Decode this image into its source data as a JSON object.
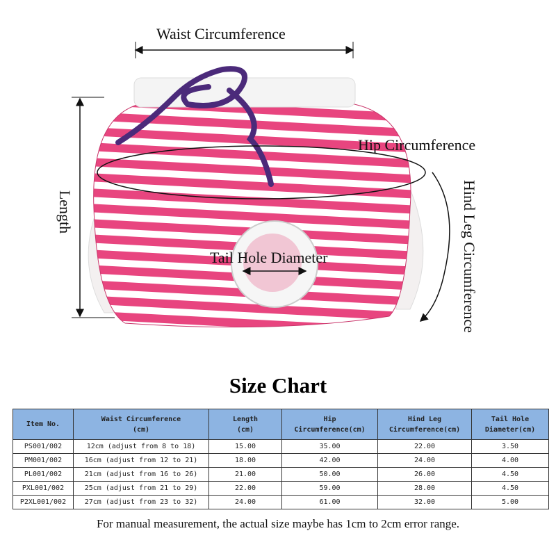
{
  "diagram_labels": {
    "waist": "Waist Circumference",
    "hip": "Hip Circumference",
    "length": "Length",
    "tail_hole": "Tail Hole Diameter",
    "hind_leg": "Hind Leg Circumference"
  },
  "colors": {
    "stripe_pink": "#e8457f",
    "rope_purple": "#4b2a7a",
    "header_blue": "#8db4e2"
  },
  "size_chart": {
    "title": "Size Chart",
    "headers": [
      [
        "Item No.",
        ""
      ],
      [
        "Waist Circumference",
        "(cm)"
      ],
      [
        "Length",
        "(cm)"
      ],
      [
        "Hip",
        "Circumference(cm)"
      ],
      [
        "Hind Leg",
        "Circumference(cm)"
      ],
      [
        "Tail Hole",
        "Diameter(cm)"
      ]
    ],
    "rows": [
      [
        "PS001/002",
        "12cm (adjust from 8 to 18)",
        "15.00",
        "35.00",
        "22.00",
        "3.50"
      ],
      [
        "PM001/002",
        "16cm (adjust from 12 to 21)",
        "18.00",
        "42.00",
        "24.00",
        "4.00"
      ],
      [
        "PL001/002",
        "21cm (adjust from 16 to 26)",
        "21.00",
        "50.00",
        "26.00",
        "4.50"
      ],
      [
        "PXL001/002",
        "25cm (adjust from 21 to 29)",
        "22.00",
        "59.00",
        "28.00",
        "4.50"
      ],
      [
        "P2XL001/002",
        "27cm (adjust from 23 to 32)",
        "24.00",
        "61.00",
        "32.00",
        "5.00"
      ]
    ],
    "note": "For manual measurement, the actual size maybe has 1cm to 2cm error range."
  }
}
